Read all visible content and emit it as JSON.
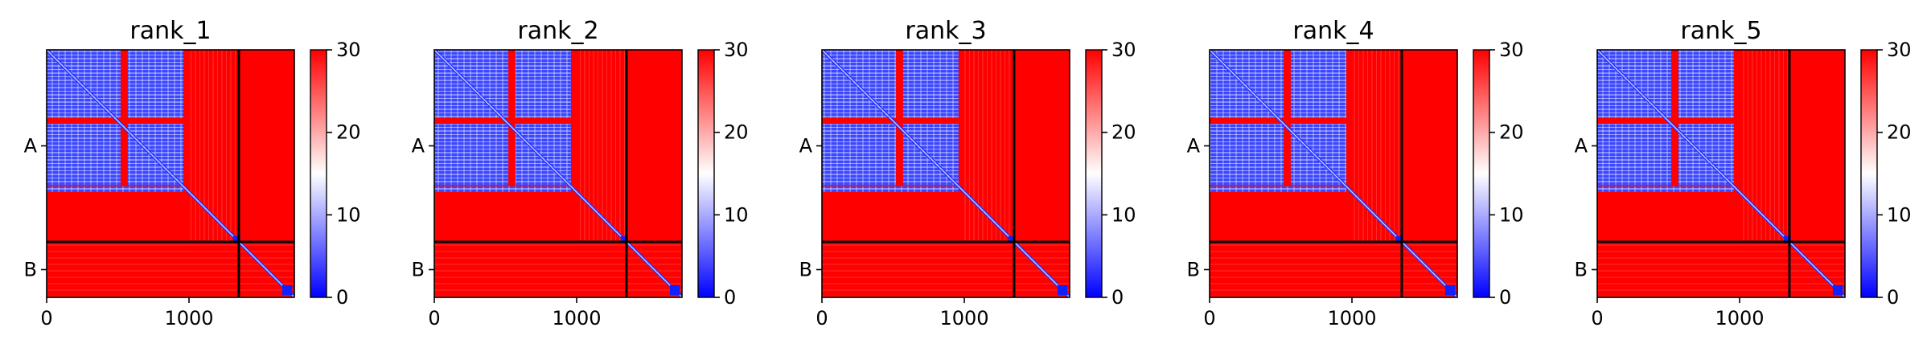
{
  "chart_data": [
    {
      "type": "heatmap",
      "title": "rank_1",
      "x_ticks": [
        0,
        1000
      ],
      "y_ticks": [
        "A",
        "B"
      ],
      "chain_lengths": {
        "A": 1350,
        "B": 390
      },
      "total_length": 1740,
      "colorbar": {
        "min": 0,
        "max": 30,
        "ticks": [
          0,
          10,
          20,
          30
        ],
        "colormap": "bwr",
        "colors": [
          "#0000ff",
          "#ffffff",
          "#ff0000"
        ]
      },
      "chain_boundary": 1350,
      "chain_boundary_color": "#000000"
    },
    {
      "type": "heatmap",
      "title": "rank_2",
      "x_ticks": [
        0,
        1000
      ],
      "y_ticks": [
        "A",
        "B"
      ],
      "chain_lengths": {
        "A": 1350,
        "B": 390
      },
      "total_length": 1740,
      "colorbar": {
        "min": 0,
        "max": 30,
        "ticks": [
          0,
          10,
          20,
          30
        ],
        "colormap": "bwr",
        "colors": [
          "#0000ff",
          "#ffffff",
          "#ff0000"
        ]
      },
      "chain_boundary": 1350,
      "chain_boundary_color": "#000000"
    },
    {
      "type": "heatmap",
      "title": "rank_3",
      "x_ticks": [
        0,
        1000
      ],
      "y_ticks": [
        "A",
        "B"
      ],
      "chain_lengths": {
        "A": 1350,
        "B": 390
      },
      "total_length": 1740,
      "colorbar": {
        "min": 0,
        "max": 30,
        "ticks": [
          0,
          10,
          20,
          30
        ],
        "colormap": "bwr",
        "colors": [
          "#0000ff",
          "#ffffff",
          "#ff0000"
        ]
      },
      "chain_boundary": 1350,
      "chain_boundary_color": "#000000"
    },
    {
      "type": "heatmap",
      "title": "rank_4",
      "x_ticks": [
        0,
        1000
      ],
      "y_ticks": [
        "A",
        "B"
      ],
      "chain_lengths": {
        "A": 1350,
        "B": 390
      },
      "total_length": 1740,
      "colorbar": {
        "min": 0,
        "max": 30,
        "ticks": [
          0,
          10,
          20,
          30
        ],
        "colormap": "bwr",
        "colors": [
          "#0000ff",
          "#ffffff",
          "#ff0000"
        ]
      },
      "chain_boundary": 1350,
      "chain_boundary_color": "#000000"
    },
    {
      "type": "heatmap",
      "title": "rank_5",
      "x_ticks": [
        0,
        1000
      ],
      "y_ticks": [
        "A",
        "B"
      ],
      "chain_lengths": {
        "A": 1350,
        "B": 390
      },
      "total_length": 1740,
      "colorbar": {
        "min": 0,
        "max": 30,
        "ticks": [
          0,
          10,
          20,
          30
        ],
        "colormap": "bwr",
        "colors": [
          "#0000ff",
          "#ffffff",
          "#ff0000"
        ]
      },
      "chain_boundary": 1350,
      "chain_boundary_color": "#000000"
    }
  ]
}
